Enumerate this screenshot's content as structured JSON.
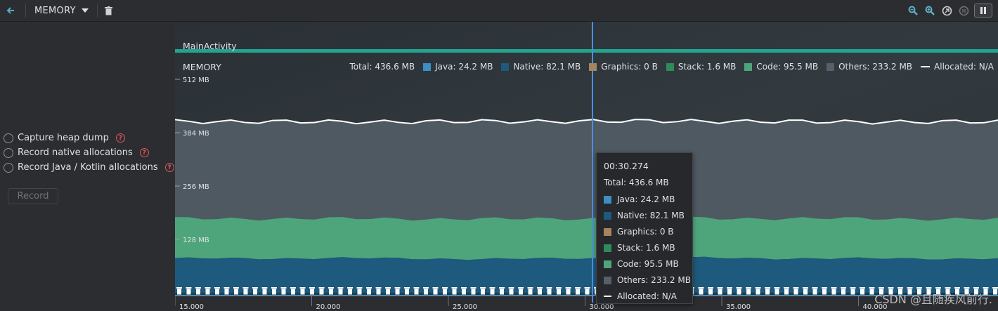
{
  "toolbar": {
    "profiler_label": "MEMORY"
  },
  "left_panel": {
    "options": [
      {
        "label": "Capture heap dump"
      },
      {
        "label": "Record native allocations"
      },
      {
        "label": "Record Java / Kotlin allocations"
      }
    ],
    "record_label": "Record"
  },
  "timeline": {
    "activity": "MainActivity",
    "x_ticks": [
      "15.000",
      "20.000",
      "25.000",
      "30.000",
      "35.000",
      "40.000"
    ],
    "y_ticks": [
      "512 MB",
      "384 MB",
      "256 MB",
      "128 MB"
    ]
  },
  "legend": {
    "title": "MEMORY",
    "total": "Total: 436.6 MB",
    "java": "Java: 24.2 MB",
    "native": "Native: 82.1 MB",
    "graphics": "Graphics: 0 B",
    "stack": "Stack: 1.6 MB",
    "code": "Code: 95.5 MB",
    "others": "Others: 233.2 MB",
    "allocated": "Allocated: N/A"
  },
  "tooltip": {
    "time": "00:30.274",
    "total": "Total: 436.6 MB",
    "java": "Java: 24.2 MB",
    "native": "Native: 82.1 MB",
    "graphics": "Graphics: 0 B",
    "stack": "Stack: 1.6 MB",
    "code": "Code: 95.5 MB",
    "others": "Others: 233.2 MB",
    "allocated": "Allocated: N/A"
  },
  "colors": {
    "java": "#3c8fc2",
    "native": "#1d5a7d",
    "graphics": "#a6845f",
    "stack": "#2f8a5c",
    "code": "#4ea57c",
    "others": "#4f5961",
    "activity_bar": "#23a48e",
    "cursor": "#4a8fe7"
  },
  "chart_data": {
    "type": "area",
    "x_ticks": [
      "15.000",
      "20.000",
      "25.000",
      "30.000",
      "35.000",
      "40.000"
    ],
    "y_ticks": [
      "512 MB",
      "384 MB",
      "256 MB",
      "128 MB"
    ],
    "ylim": [
      0,
      512
    ],
    "series": [
      {
        "name": "Native",
        "values": [
          82,
          83,
          81,
          84,
          82,
          82
        ]
      },
      {
        "name": "Code",
        "values": [
          96,
          95,
          96,
          95,
          96,
          95
        ]
      },
      {
        "name": "Others",
        "values": [
          233,
          232,
          234,
          233,
          232,
          233
        ]
      }
    ]
  },
  "watermark": "CSDN @且随疾风前行."
}
